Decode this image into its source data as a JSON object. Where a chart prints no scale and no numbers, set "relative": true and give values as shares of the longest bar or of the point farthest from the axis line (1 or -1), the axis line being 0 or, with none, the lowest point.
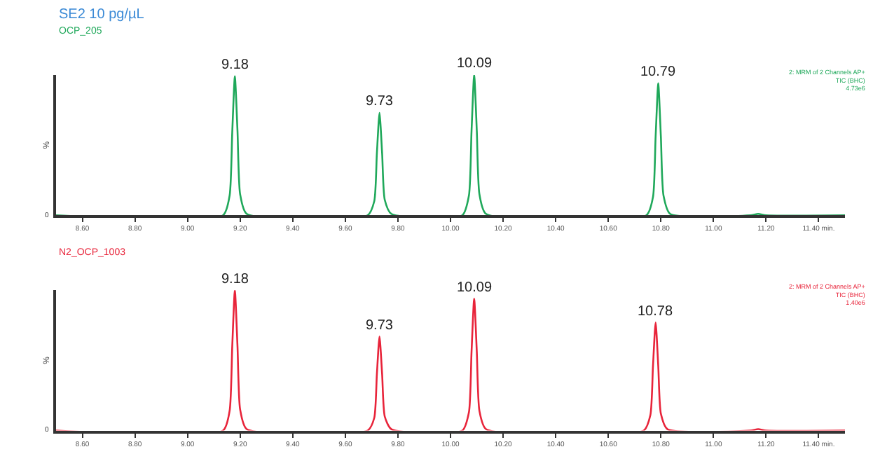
{
  "chart_data": [
    {
      "type": "line",
      "title": "SE2 10 pg/µL",
      "subtitle": "OCP_205",
      "ylabel": "%",
      "relative": true,
      "marker": "none",
      "line_style": "solid",
      "xlim": [
        8.5,
        11.5
      ],
      "xticks": [
        {
          "value": 8.6,
          "label": "8.60"
        },
        {
          "value": 8.8,
          "label": "8.80"
        },
        {
          "value": 9.0,
          "label": "9.00"
        },
        {
          "value": 9.2,
          "label": "9.20"
        },
        {
          "value": 9.4,
          "label": "9.40"
        },
        {
          "value": 9.6,
          "label": "9.60"
        },
        {
          "value": 9.8,
          "label": "9.80"
        },
        {
          "value": 10.0,
          "label": "10.00"
        },
        {
          "value": 10.2,
          "label": "10.20"
        },
        {
          "value": 10.4,
          "label": "10.40"
        },
        {
          "value": 10.6,
          "label": "10.60"
        },
        {
          "value": 10.8,
          "label": "10.80"
        },
        {
          "value": 11.0,
          "label": "11.00"
        },
        {
          "value": 11.2,
          "label": "11.20"
        },
        {
          "value": 11.4,
          "label": "11.40 min."
        }
      ],
      "series": [
        {
          "color": "#1fa85a",
          "x": [
            8.5,
            9.135,
            9.16,
            9.17,
            9.18,
            9.19,
            9.2,
            9.225,
            9.685,
            9.71,
            9.72,
            9.73,
            9.74,
            9.75,
            9.775,
            10.045,
            10.07,
            10.08,
            10.09,
            10.1,
            10.11,
            10.135,
            10.745,
            10.77,
            10.78,
            10.79,
            10.8,
            10.81,
            10.835,
            11.14,
            11.17,
            11.2,
            11.5
          ],
          "values": [
            0,
            0,
            0.14,
            0.59,
            0.99,
            0.6,
            0.15,
            0.01,
            0,
            0.1,
            0.44,
            0.73,
            0.44,
            0.11,
            0.01,
            0,
            0.14,
            0.6,
            1.0,
            0.6,
            0.15,
            0.01,
            0,
            0.13,
            0.56,
            0.94,
            0.56,
            0.14,
            0.01,
            0,
            0.01,
            0,
            0
          ]
        }
      ],
      "annotations": [
        {
          "text": "9.18",
          "x": 9.18,
          "y": 0.99
        },
        {
          "text": "9.73",
          "x": 9.73,
          "y": 0.73
        },
        {
          "text": "10.09",
          "x": 10.09,
          "y": 1.0
        },
        {
          "text": "10.79",
          "x": 10.79,
          "y": 0.94
        },
        {
          "text": "0",
          "x": 8.5,
          "y": 0
        },
        "2: MRM of 2 Channels AP+\nTIC (BHC)\n4.73e6"
      ]
    },
    {
      "type": "line",
      "title": "N2_OCP_1003",
      "ylabel": "%",
      "relative": true,
      "marker": "none",
      "line_style": "solid",
      "xlim": [
        8.5,
        11.5
      ],
      "xticks": [
        {
          "value": 8.6,
          "label": "8.60"
        },
        {
          "value": 8.8,
          "label": "8.80"
        },
        {
          "value": 9.0,
          "label": "9.00"
        },
        {
          "value": 9.2,
          "label": "9.20"
        },
        {
          "value": 9.4,
          "label": "9.40"
        },
        {
          "value": 9.6,
          "label": "9.60"
        },
        {
          "value": 9.8,
          "label": "9.80"
        },
        {
          "value": 10.0,
          "label": "10.00"
        },
        {
          "value": 10.2,
          "label": "10.20"
        },
        {
          "value": 10.4,
          "label": "10.40"
        },
        {
          "value": 10.6,
          "label": "10.60"
        },
        {
          "value": 10.8,
          "label": "10.80"
        },
        {
          "value": 11.0,
          "label": "11.00"
        },
        {
          "value": 11.2,
          "label": "11.20"
        },
        {
          "value": 11.4,
          "label": "11.40 min."
        }
      ],
      "series": [
        {
          "color": "#e8243a",
          "x": [
            8.5,
            9.135,
            9.16,
            9.17,
            9.18,
            9.19,
            9.2,
            9.225,
            9.685,
            9.71,
            9.72,
            9.73,
            9.74,
            9.75,
            9.775,
            10.045,
            10.07,
            10.08,
            10.09,
            10.1,
            10.11,
            10.135,
            10.735,
            10.76,
            10.77,
            10.78,
            10.79,
            10.8,
            10.825,
            11.14,
            11.17,
            11.2,
            11.5
          ],
          "values": [
            0,
            0,
            0.14,
            0.6,
            1.0,
            0.6,
            0.15,
            0.01,
            0,
            0.09,
            0.4,
            0.67,
            0.4,
            0.1,
            0.01,
            0,
            0.13,
            0.56,
            0.94,
            0.56,
            0.14,
            0.01,
            0,
            0.11,
            0.46,
            0.77,
            0.46,
            0.12,
            0.01,
            0,
            0.01,
            0,
            0
          ]
        }
      ],
      "annotations": [
        {
          "text": "9.18",
          "x": 9.18,
          "y": 1.0
        },
        {
          "text": "9.73",
          "x": 9.73,
          "y": 0.67
        },
        {
          "text": "10.09",
          "x": 10.09,
          "y": 0.94
        },
        {
          "text": "10.78",
          "x": 10.78,
          "y": 0.77
        },
        {
          "text": "0",
          "x": 8.5,
          "y": 0
        },
        "2: MRM of 2 Channels AP+\nTIC (BHC)\n1.40e6"
      ]
    }
  ]
}
